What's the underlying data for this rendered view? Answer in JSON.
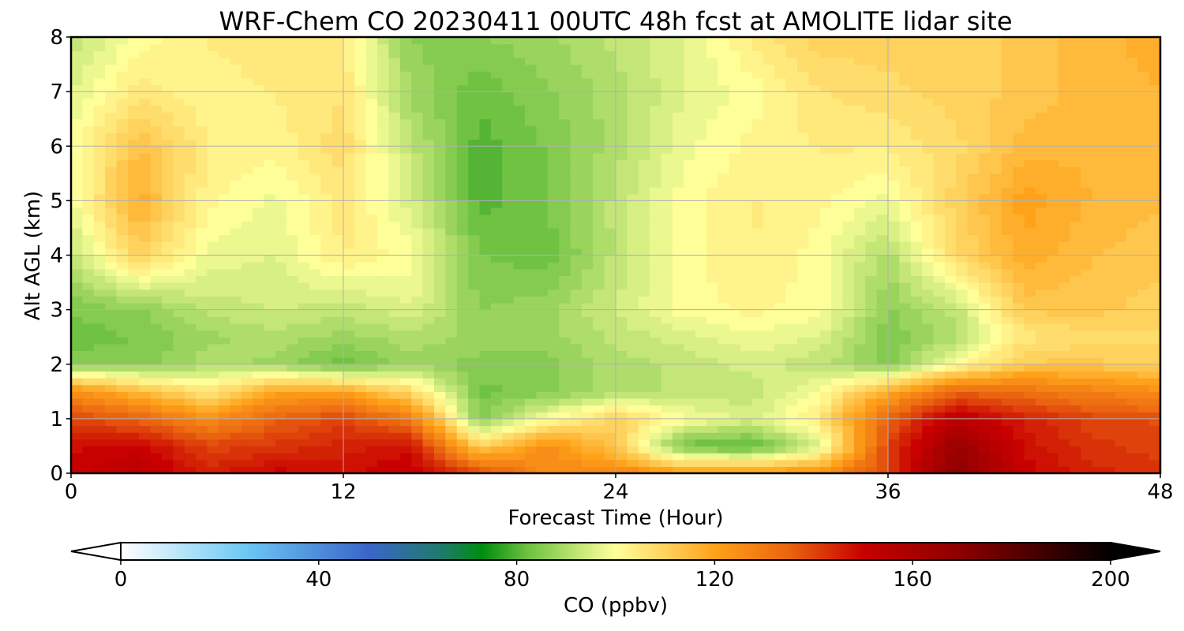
{
  "chart_data": {
    "type": "heatmap",
    "title": "WRF-Chem CO  20230411 00UTC 48h fcst at AMOLITE lidar site",
    "xlabel": "Forecast Time (Hour)",
    "ylabel": "Alt AGL (km)",
    "xlim": [
      0,
      48
    ],
    "ylim": [
      0,
      8
    ],
    "x_ticks": [
      "0",
      "12",
      "24",
      "36",
      "48"
    ],
    "y_ticks": [
      "0",
      "1",
      "2",
      "3",
      "4",
      "5",
      "6",
      "7",
      "8"
    ],
    "grid": true,
    "x": [
      0,
      3,
      6,
      9,
      12,
      15,
      18,
      21,
      24,
      27,
      30,
      33,
      36,
      39,
      42,
      45,
      48
    ],
    "y": [
      0,
      0.5,
      1,
      1.5,
      2,
      2.5,
      3,
      4,
      5,
      6,
      7,
      8
    ],
    "z": [
      [
        150,
        155,
        145,
        150,
        148,
        152,
        140,
        125,
        128,
        122,
        122,
        125,
        140,
        170,
        150,
        145,
        142
      ],
      [
        148,
        150,
        140,
        142,
        145,
        148,
        110,
        125,
        112,
        82,
        80,
        95,
        140,
        165,
        148,
        142,
        140
      ],
      [
        140,
        135,
        125,
        135,
        140,
        130,
        85,
        100,
        110,
        100,
        95,
        105,
        135,
        155,
        145,
        140,
        138
      ],
      [
        125,
        115,
        105,
        120,
        120,
        108,
        83,
        85,
        90,
        92,
        92,
        100,
        118,
        135,
        132,
        128,
        125
      ],
      [
        86,
        85,
        90,
        88,
        82,
        88,
        85,
        85,
        90,
        92,
        95,
        92,
        85,
        100,
        112,
        112,
        110
      ],
      [
        82,
        84,
        88,
        90,
        88,
        90,
        88,
        88,
        92,
        95,
        98,
        96,
        84,
        90,
        105,
        108,
        108
      ],
      [
        84,
        86,
        92,
        94,
        92,
        96,
        86,
        88,
        94,
        100,
        102,
        100,
        86,
        92,
        112,
        112,
        110
      ],
      [
        92,
        110,
        98,
        96,
        104,
        100,
        84,
        82,
        92,
        100,
        104,
        100,
        90,
        108,
        118,
        114,
        112
      ],
      [
        98,
        118,
        102,
        98,
        105,
        95,
        80,
        84,
        92,
        100,
        104,
        102,
        98,
        110,
        120,
        116,
        114
      ],
      [
        100,
        114,
        104,
        102,
        108,
        92,
        80,
        84,
        90,
        98,
        102,
        104,
        104,
        108,
        115,
        116,
        116
      ],
      [
        96,
        105,
        102,
        104,
        106,
        88,
        82,
        86,
        90,
        96,
        100,
        106,
        108,
        110,
        112,
        115,
        116
      ],
      [
        92,
        100,
        104,
        106,
        104,
        86,
        86,
        88,
        92,
        96,
        104,
        110,
        110,
        110,
        112,
        115,
        118
      ]
    ],
    "colorbar": {
      "label": "CO  (ppbv)",
      "ticks": [
        "0",
        "40",
        "80",
        "120",
        "160",
        "200"
      ],
      "range": [
        0,
        200
      ],
      "extend": "both",
      "stops": [
        {
          "v": 0,
          "c": "#ffffff"
        },
        {
          "v": 25,
          "c": "#6ec8f5"
        },
        {
          "v": 50,
          "c": "#3a66c8"
        },
        {
          "v": 65,
          "c": "#1f7a6a"
        },
        {
          "v": 73,
          "c": "#008c10"
        },
        {
          "v": 82,
          "c": "#6cc040"
        },
        {
          "v": 93,
          "c": "#c8e87a"
        },
        {
          "v": 100,
          "c": "#ffff9a"
        },
        {
          "v": 110,
          "c": "#ffd25e"
        },
        {
          "v": 120,
          "c": "#ffa21a"
        },
        {
          "v": 135,
          "c": "#ea6410"
        },
        {
          "v": 150,
          "c": "#c80000"
        },
        {
          "v": 170,
          "c": "#8a0000"
        },
        {
          "v": 200,
          "c": "#000000"
        }
      ]
    }
  }
}
